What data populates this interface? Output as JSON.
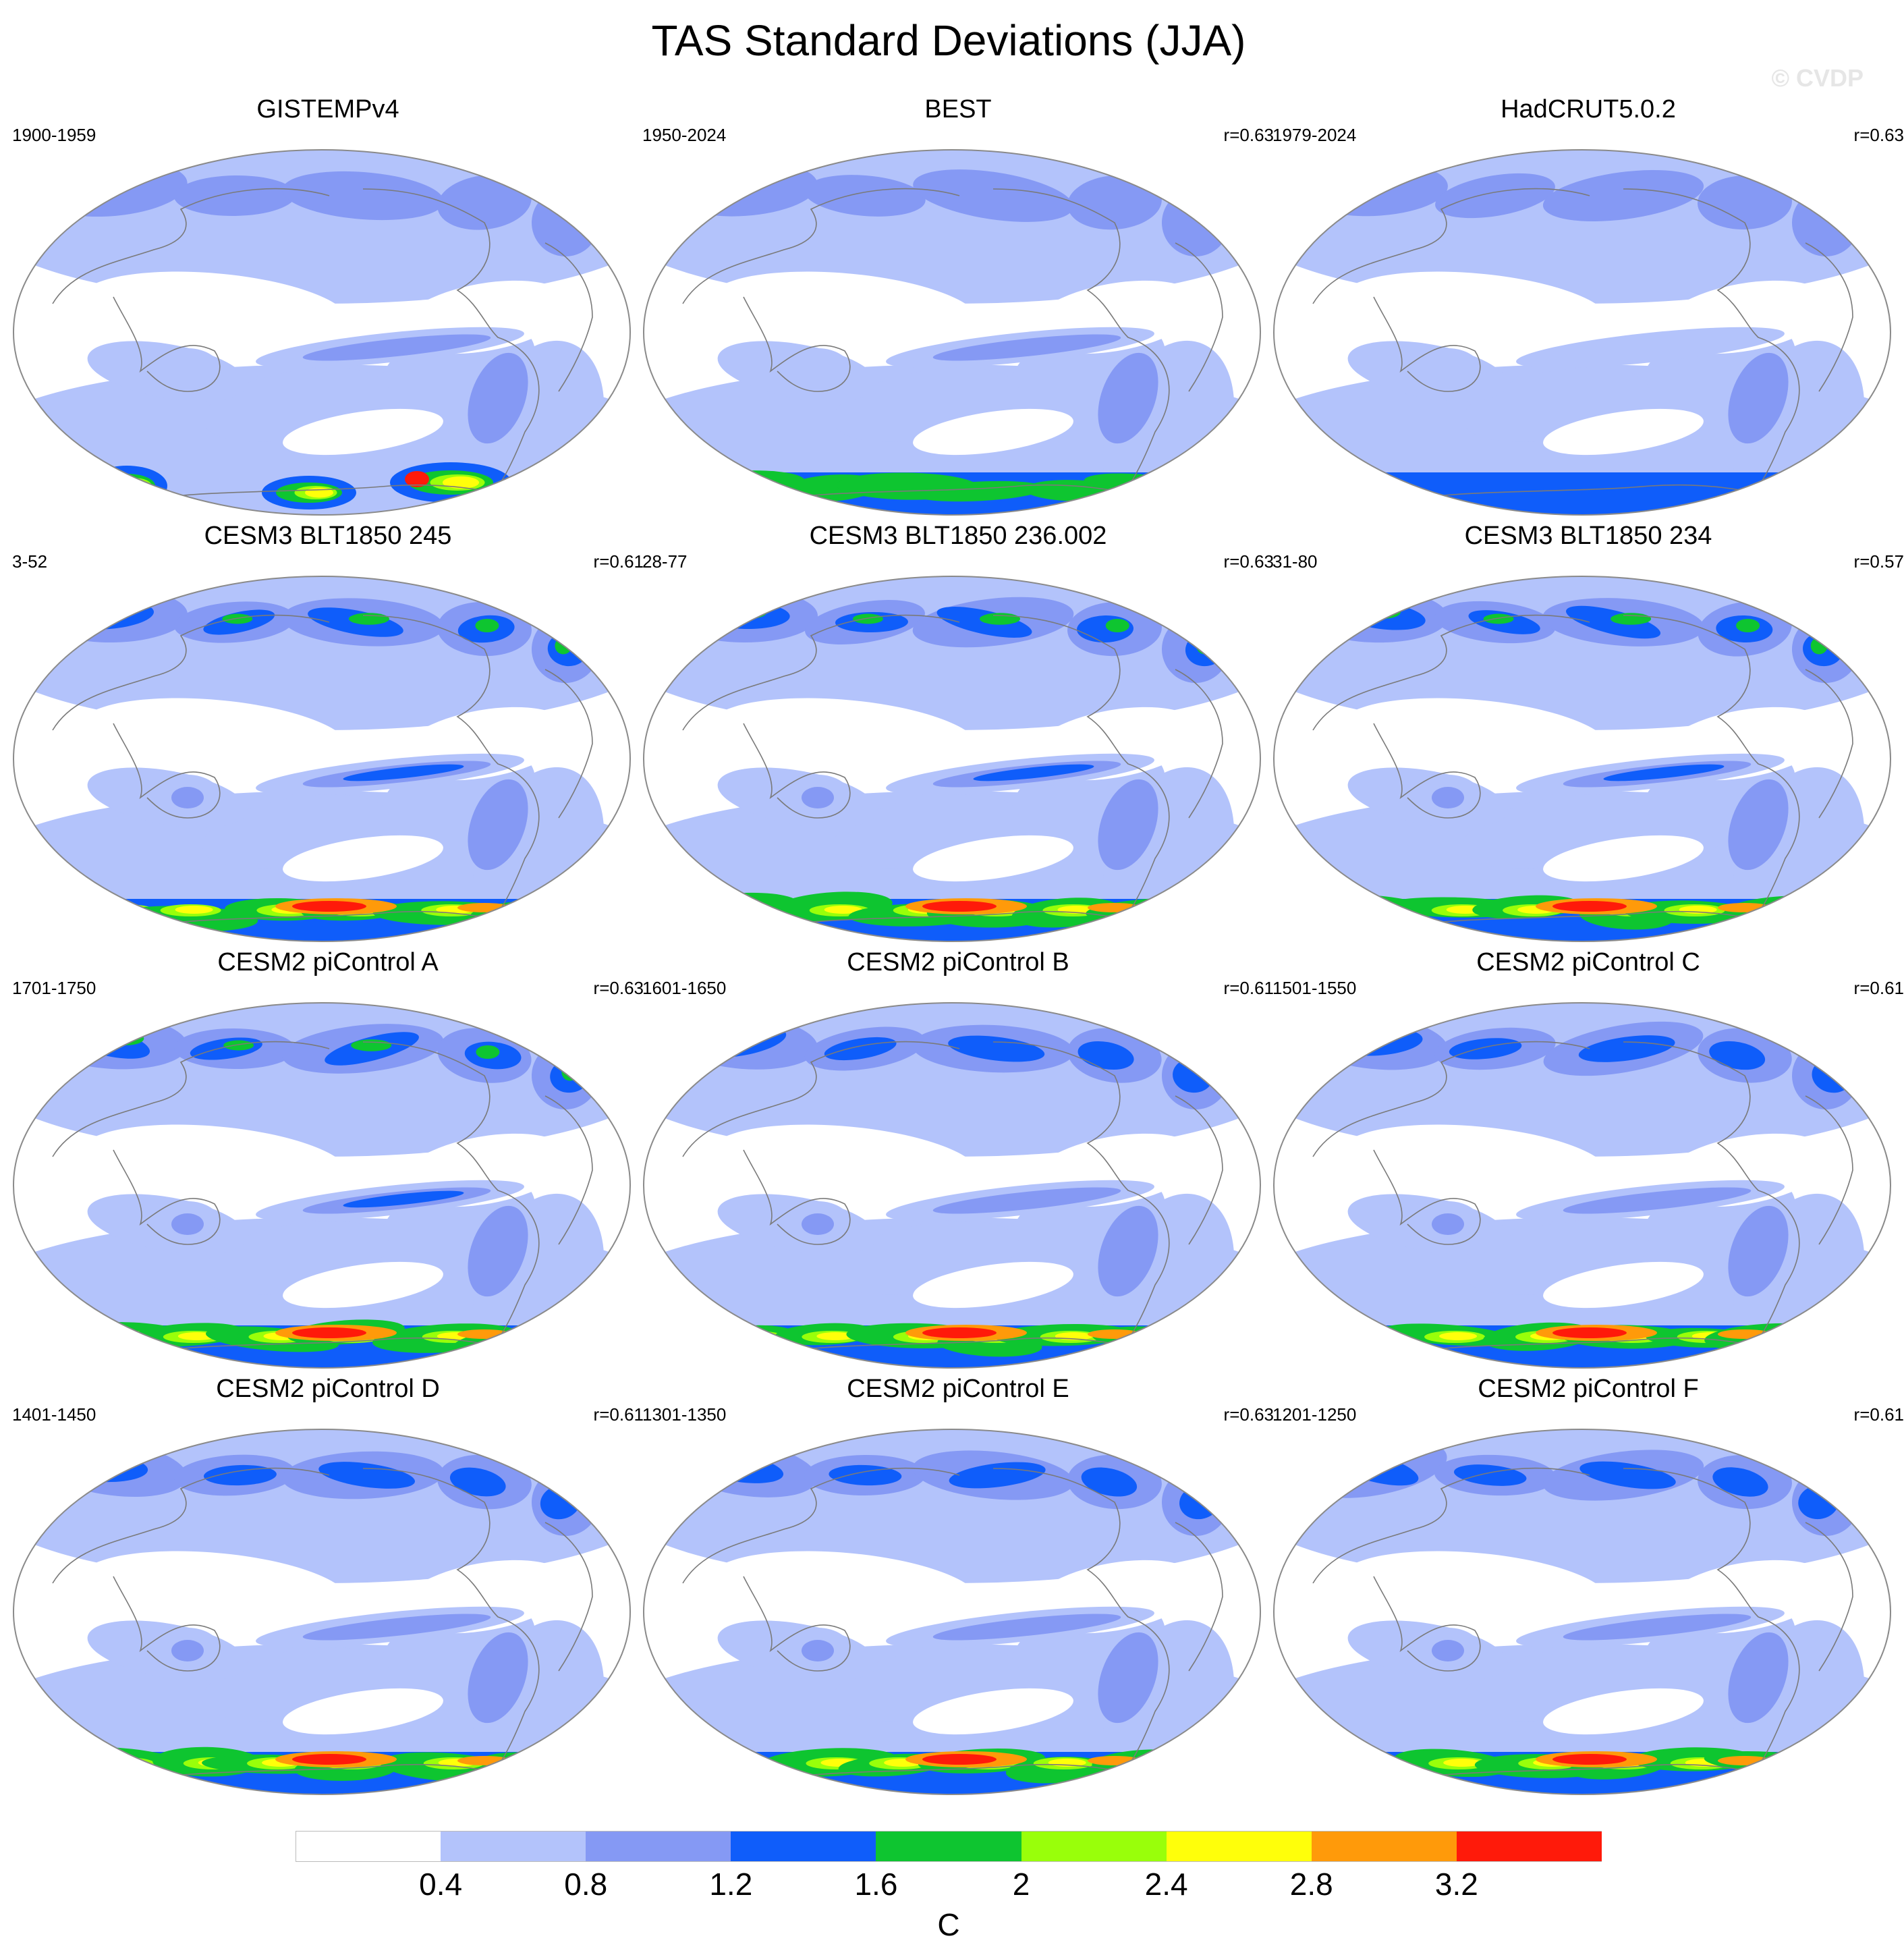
{
  "title": "TAS Standard Deviations (JJA)",
  "watermark": "© CVDP",
  "colors": {
    "white": "#ffffff",
    "c1": "#b3c3fb",
    "c2": "#8599f4",
    "c3": "#0f5dfa",
    "c4": "#0ec530",
    "c5": "#99ff0a",
    "c6": "#ffff0a",
    "c7": "#ff9a0a",
    "c8": "#ff1a0a",
    "coast": "#7a7a7a"
  },
  "colorbar": {
    "labels": [
      "0.4",
      "0.8",
      "1.2",
      "1.6",
      "2",
      "2.4",
      "2.8",
      "3.2"
    ],
    "units": "C",
    "levels": [
      0.4,
      0.8,
      1.2,
      1.6,
      2.0,
      2.4,
      2.8,
      3.2
    ],
    "colors": [
      "#ffffff",
      "#b3c3fb",
      "#8599f4",
      "#0f5dfa",
      "#0ec530",
      "#99ff0a",
      "#ffff0a",
      "#ff9a0a",
      "#ff1a0a"
    ]
  },
  "panels": [
    {
      "title": "GISTEMPv4",
      "period": "1900-1959",
      "r": "",
      "intensity": 0.5,
      "kind": "obs_gap"
    },
    {
      "title": "BEST",
      "period": "1950-2024",
      "r": "r=0.63",
      "intensity": 0.45,
      "kind": "obs"
    },
    {
      "title": "HadCRUT5.0.2",
      "period": "1979-2024",
      "r": "r=0.63",
      "intensity": 0.3,
      "kind": "obs_low"
    },
    {
      "title": "CESM3 BLT1850 245",
      "period": "3-52",
      "r": "r=0.61",
      "intensity": 1.0,
      "kind": "model"
    },
    {
      "title": "CESM3 BLT1850 236.002",
      "period": "28-77",
      "r": "r=0.63",
      "intensity": 0.95,
      "kind": "model"
    },
    {
      "title": "CESM3 BLT1850 234",
      "period": "31-80",
      "r": "r=0.57",
      "intensity": 0.85,
      "kind": "model"
    },
    {
      "title": "CESM2 piControl A",
      "period": "1701-1750",
      "r": "r=0.63",
      "intensity": 0.85,
      "kind": "model"
    },
    {
      "title": "CESM2 piControl B",
      "period": "1601-1650",
      "r": "r=0.61",
      "intensity": 0.8,
      "kind": "model"
    },
    {
      "title": "CESM2 piControl C",
      "period": "1501-1550",
      "r": "r=0.61",
      "intensity": 0.8,
      "kind": "model"
    },
    {
      "title": "CESM2 piControl D",
      "period": "1401-1450",
      "r": "r=0.61",
      "intensity": 0.75,
      "kind": "model"
    },
    {
      "title": "CESM2 piControl E",
      "period": "1301-1350",
      "r": "r=0.63",
      "intensity": 0.75,
      "kind": "model"
    },
    {
      "title": "CESM2 piControl F",
      "period": "1201-1250",
      "r": "r=0.61",
      "intensity": 0.75,
      "kind": "model"
    }
  ]
}
